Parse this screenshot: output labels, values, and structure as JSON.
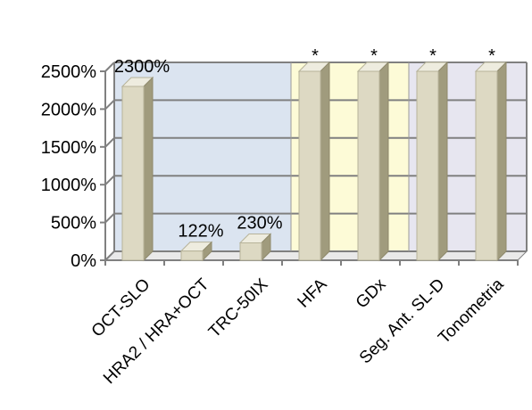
{
  "chart_data": {
    "type": "bar",
    "title": "",
    "xlabel": "",
    "ylabel": "",
    "categories": [
      "OCT-SLO",
      "HRA2 / HRA+OCT",
      "TRC-50IX",
      "HFA",
      "GDx",
      "Seg. Ant. SL-D",
      "Tonometria"
    ],
    "values": [
      2300,
      122,
      230,
      2500,
      2500,
      2500,
      2500
    ],
    "data_labels": [
      "2300%",
      "122%",
      "230%",
      "*",
      "*",
      "*",
      "*"
    ],
    "y_ticks": [
      "0%",
      "500%",
      "1000%",
      "1500%",
      "2000%",
      "2500%"
    ],
    "ylim": [
      0,
      2500
    ],
    "grid": true,
    "three_d": true,
    "bar_color": "#ddd9c3",
    "background_regions": [
      {
        "categories": [
          "OCT-SLO",
          "HRA2 / HRA+OCT",
          "TRC-50IX"
        ],
        "color": "#dbe4f0"
      },
      {
        "categories": [
          "HFA",
          "GDx"
        ],
        "color": "#fdfbd7"
      },
      {
        "categories": [
          "Seg. Ant. SL-D",
          "Tonometria"
        ],
        "color": "#e7e6f0"
      }
    ]
  }
}
